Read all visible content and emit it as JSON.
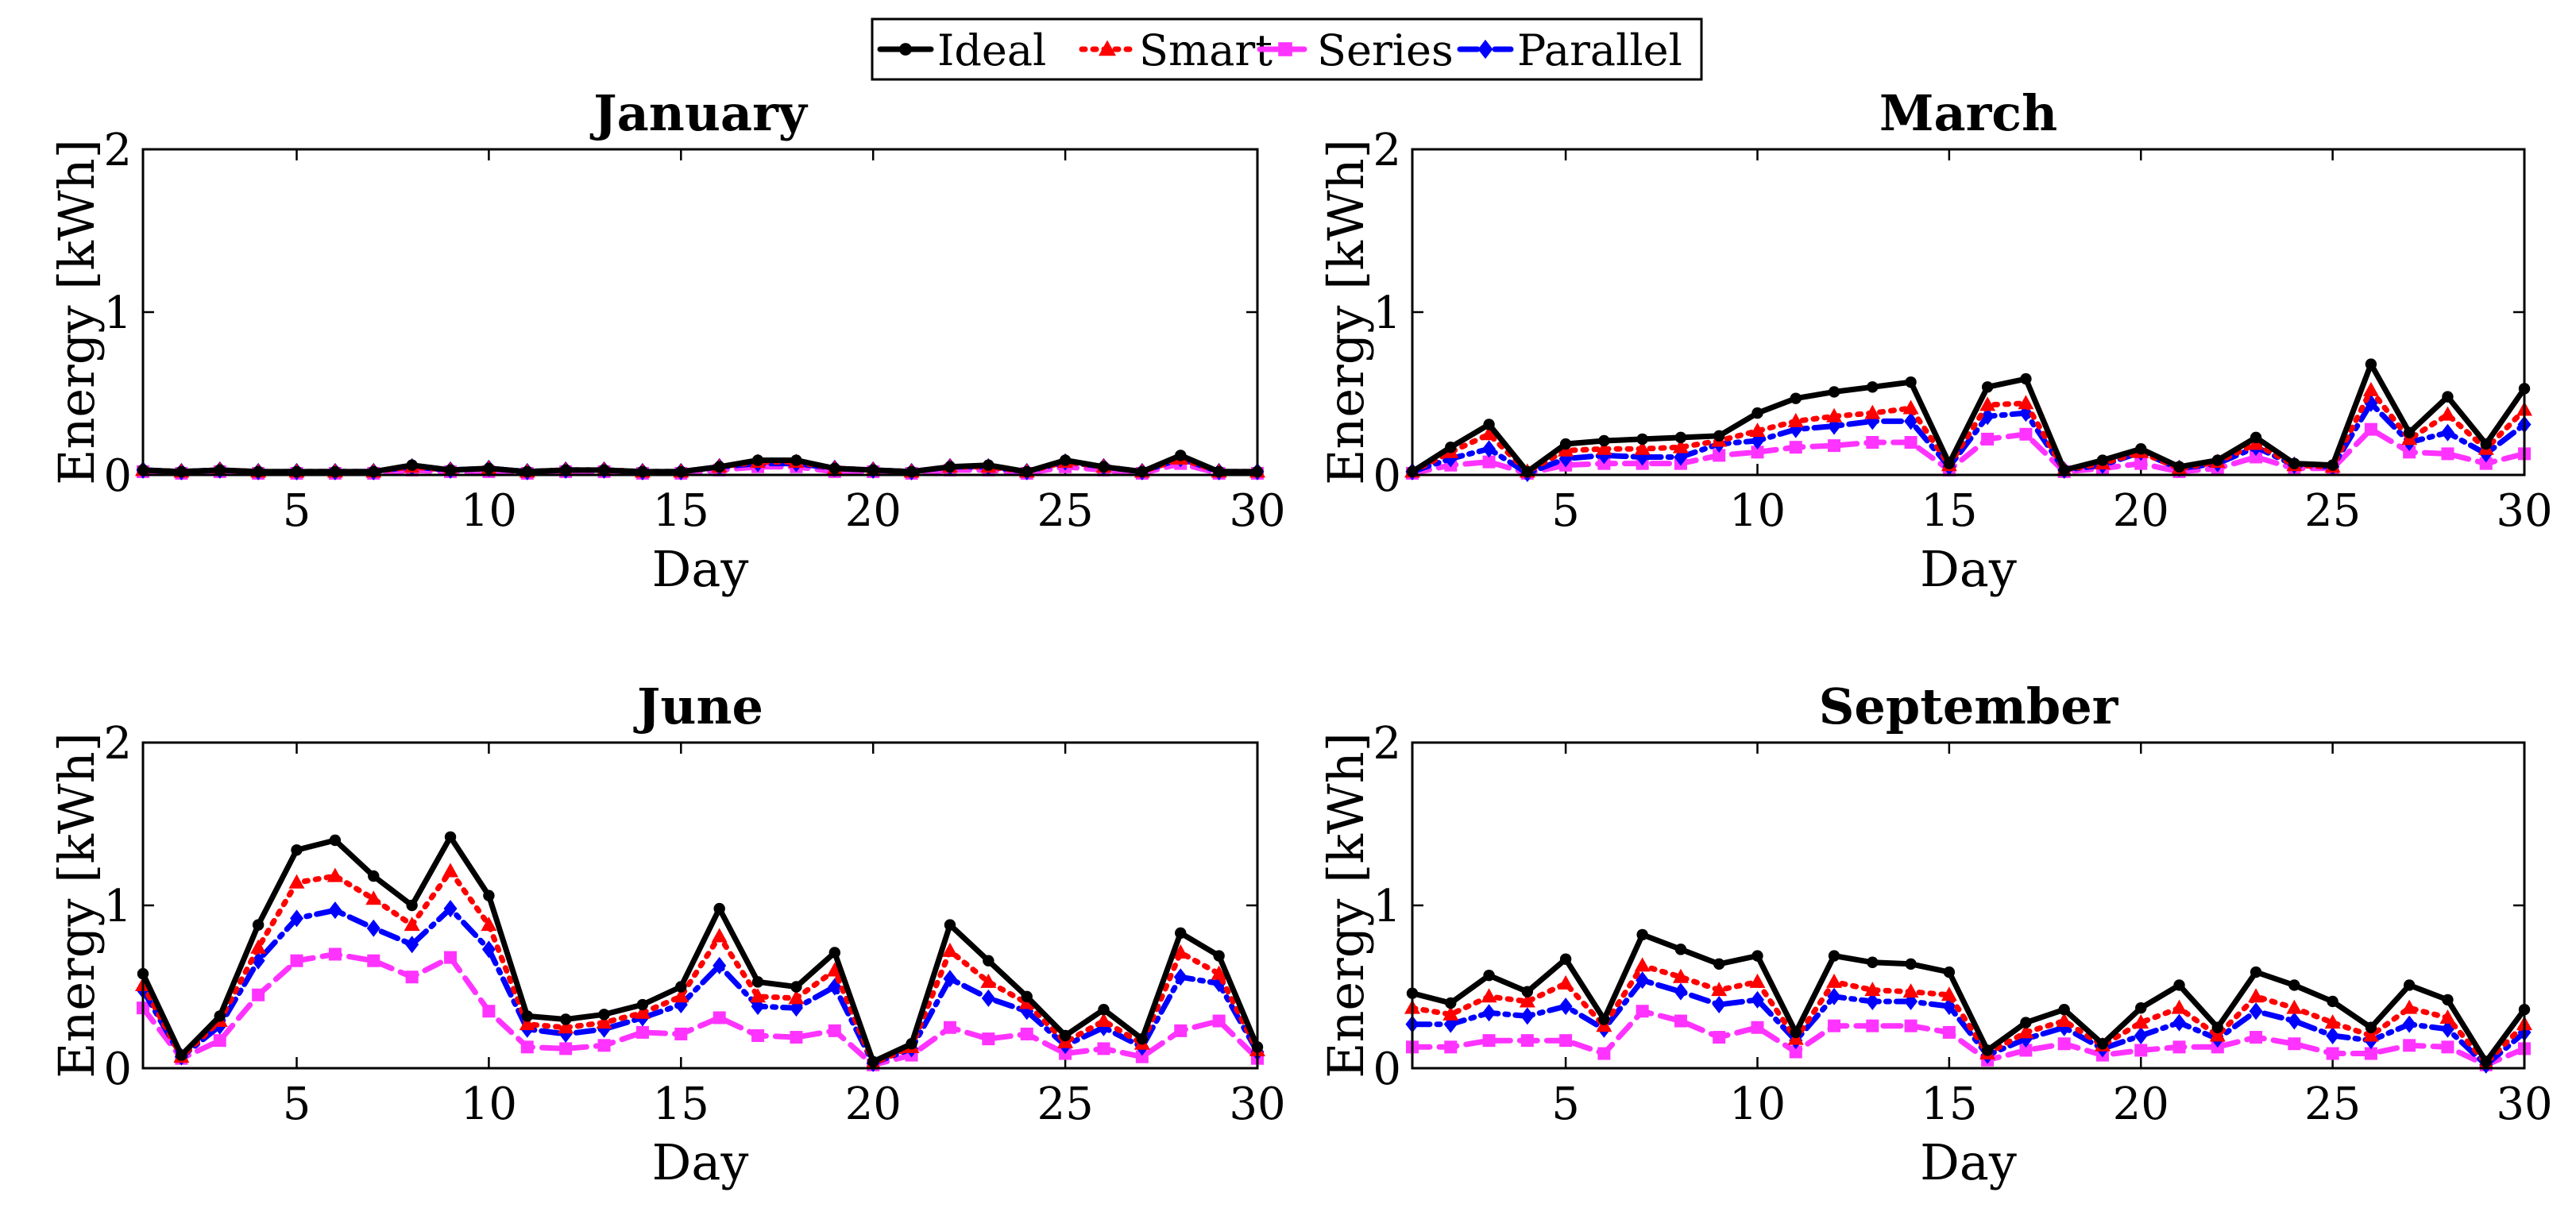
{
  "legend": [
    {
      "name": "Ideal",
      "color": "#000000",
      "marker": "circle",
      "dash": "solid"
    },
    {
      "name": "Smart",
      "color": "#ff0000",
      "marker": "triangle",
      "dash": "dotted"
    },
    {
      "name": "Series",
      "color": "#ff33ff",
      "marker": "square",
      "dash": "dashed"
    },
    {
      "name": "Parallel",
      "color": "#0000ff",
      "marker": "diamond",
      "dash": "dashdot"
    }
  ],
  "chart_data": [
    {
      "type": "line",
      "title": "January",
      "xlabel": "Day",
      "ylabel": "Energy [kWh]",
      "xlim": [
        1,
        30
      ],
      "ylim": [
        0,
        2
      ],
      "xticks": [
        5,
        10,
        15,
        20,
        25,
        30
      ],
      "yticks": [
        0,
        1,
        2
      ],
      "x": [
        1,
        2,
        3,
        4,
        5,
        6,
        7,
        8,
        9,
        10,
        11,
        12,
        13,
        14,
        15,
        16,
        17,
        18,
        19,
        20,
        21,
        22,
        23,
        24,
        25,
        26,
        27,
        28,
        29,
        30
      ],
      "series": [
        {
          "name": "Ideal",
          "values": [
            0.03,
            0.02,
            0.03,
            0.02,
            0.02,
            0.02,
            0.02,
            0.06,
            0.03,
            0.04,
            0.02,
            0.03,
            0.03,
            0.02,
            0.02,
            0.05,
            0.09,
            0.09,
            0.04,
            0.03,
            0.02,
            0.05,
            0.06,
            0.02,
            0.09,
            0.05,
            0.02,
            0.12,
            0.02,
            0.02
          ]
        },
        {
          "name": "Smart",
          "values": [
            0.03,
            0.02,
            0.03,
            0.02,
            0.02,
            0.02,
            0.02,
            0.05,
            0.03,
            0.04,
            0.02,
            0.03,
            0.03,
            0.02,
            0.02,
            0.05,
            0.08,
            0.08,
            0.04,
            0.03,
            0.02,
            0.05,
            0.05,
            0.02,
            0.08,
            0.05,
            0.02,
            0.1,
            0.02,
            0.02
          ]
        },
        {
          "name": "Series",
          "values": [
            0.02,
            0.01,
            0.02,
            0.01,
            0.01,
            0.01,
            0.01,
            0.03,
            0.02,
            0.02,
            0.01,
            0.02,
            0.02,
            0.01,
            0.01,
            0.03,
            0.05,
            0.05,
            0.02,
            0.02,
            0.01,
            0.03,
            0.03,
            0.01,
            0.05,
            0.03,
            0.01,
            0.07,
            0.01,
            0.01
          ]
        },
        {
          "name": "Parallel",
          "values": [
            0.03,
            0.02,
            0.03,
            0.02,
            0.02,
            0.02,
            0.02,
            0.05,
            0.03,
            0.04,
            0.02,
            0.03,
            0.03,
            0.02,
            0.02,
            0.05,
            0.07,
            0.07,
            0.04,
            0.03,
            0.02,
            0.05,
            0.05,
            0.02,
            0.08,
            0.05,
            0.02,
            0.1,
            0.02,
            0.02
          ]
        }
      ]
    },
    {
      "type": "line",
      "title": "March",
      "xlabel": "Day",
      "ylabel": "Energy [kWh]",
      "xlim": [
        1,
        30
      ],
      "ylim": [
        0,
        2
      ],
      "xticks": [
        5,
        10,
        15,
        20,
        25,
        30
      ],
      "yticks": [
        0,
        1,
        2
      ],
      "x": [
        1,
        2,
        3,
        4,
        5,
        6,
        7,
        8,
        9,
        10,
        11,
        12,
        13,
        14,
        15,
        16,
        17,
        18,
        19,
        20,
        21,
        22,
        23,
        24,
        25,
        26,
        27,
        28,
        29,
        30
      ],
      "series": [
        {
          "name": "Ideal",
          "values": [
            0.02,
            0.17,
            0.31,
            0.02,
            0.19,
            0.21,
            0.22,
            0.23,
            0.24,
            0.38,
            0.47,
            0.51,
            0.54,
            0.57,
            0.07,
            0.54,
            0.59,
            0.03,
            0.09,
            0.16,
            0.05,
            0.09,
            0.23,
            0.07,
            0.06,
            0.68,
            0.26,
            0.48,
            0.19,
            0.53
          ]
        },
        {
          "name": "Smart",
          "values": [
            0.02,
            0.14,
            0.25,
            0.02,
            0.15,
            0.16,
            0.16,
            0.17,
            0.21,
            0.27,
            0.33,
            0.36,
            0.38,
            0.41,
            0.06,
            0.43,
            0.44,
            0.03,
            0.07,
            0.14,
            0.04,
            0.08,
            0.19,
            0.06,
            0.05,
            0.52,
            0.22,
            0.37,
            0.16,
            0.4
          ]
        },
        {
          "name": "Series",
          "values": [
            0.01,
            0.06,
            0.08,
            0.01,
            0.06,
            0.07,
            0.07,
            0.07,
            0.12,
            0.14,
            0.17,
            0.18,
            0.2,
            0.2,
            0.03,
            0.22,
            0.25,
            0.02,
            0.04,
            0.07,
            0.02,
            0.04,
            0.11,
            0.04,
            0.04,
            0.28,
            0.14,
            0.13,
            0.07,
            0.13
          ]
        },
        {
          "name": "Parallel",
          "values": [
            0.02,
            0.1,
            0.16,
            0.01,
            0.1,
            0.12,
            0.11,
            0.11,
            0.19,
            0.21,
            0.28,
            0.3,
            0.33,
            0.33,
            0.05,
            0.36,
            0.38,
            0.03,
            0.06,
            0.14,
            0.04,
            0.07,
            0.17,
            0.06,
            0.05,
            0.44,
            0.2,
            0.26,
            0.13,
            0.31
          ]
        }
      ]
    },
    {
      "type": "line",
      "title": "June",
      "xlabel": "Day",
      "ylabel": "Energy [kWh]",
      "xlim": [
        1,
        30
      ],
      "ylim": [
        0,
        2
      ],
      "xticks": [
        5,
        10,
        15,
        20,
        25,
        30
      ],
      "yticks": [
        0,
        1,
        2
      ],
      "x": [
        1,
        2,
        3,
        4,
        5,
        6,
        7,
        8,
        9,
        10,
        11,
        12,
        13,
        14,
        15,
        16,
        17,
        18,
        19,
        20,
        21,
        22,
        23,
        24,
        25,
        26,
        27,
        28,
        29,
        30
      ],
      "series": [
        {
          "name": "Ideal",
          "values": [
            0.58,
            0.08,
            0.32,
            0.88,
            1.34,
            1.4,
            1.18,
            1.0,
            1.42,
            1.06,
            0.32,
            0.3,
            0.33,
            0.39,
            0.5,
            0.98,
            0.53,
            0.5,
            0.71,
            0.04,
            0.15,
            0.88,
            0.66,
            0.44,
            0.2,
            0.36,
            0.18,
            0.83,
            0.69,
            0.13
          ]
        },
        {
          "name": "Smart",
          "values": [
            0.51,
            0.07,
            0.29,
            0.74,
            1.14,
            1.18,
            1.04,
            0.88,
            1.21,
            0.88,
            0.27,
            0.25,
            0.28,
            0.34,
            0.44,
            0.81,
            0.44,
            0.43,
            0.6,
            0.03,
            0.13,
            0.72,
            0.53,
            0.4,
            0.16,
            0.29,
            0.15,
            0.71,
            0.58,
            0.11
          ]
        },
        {
          "name": "Series",
          "values": [
            0.37,
            0.06,
            0.17,
            0.45,
            0.66,
            0.7,
            0.66,
            0.56,
            0.68,
            0.35,
            0.13,
            0.12,
            0.14,
            0.22,
            0.21,
            0.31,
            0.2,
            0.19,
            0.23,
            0.02,
            0.08,
            0.25,
            0.18,
            0.21,
            0.09,
            0.12,
            0.07,
            0.23,
            0.29,
            0.06
          ]
        },
        {
          "name": "Parallel",
          "values": [
            0.48,
            0.07,
            0.26,
            0.66,
            0.92,
            0.97,
            0.86,
            0.76,
            0.98,
            0.73,
            0.24,
            0.21,
            0.24,
            0.31,
            0.39,
            0.63,
            0.38,
            0.37,
            0.5,
            0.03,
            0.12,
            0.55,
            0.43,
            0.35,
            0.14,
            0.25,
            0.13,
            0.56,
            0.52,
            0.1
          ]
        }
      ]
    },
    {
      "type": "line",
      "title": "September",
      "xlabel": "Day",
      "ylabel": "Energy [kWh]",
      "xlim": [
        1,
        30
      ],
      "ylim": [
        0,
        2
      ],
      "xticks": [
        5,
        10,
        15,
        20,
        25,
        30
      ],
      "yticks": [
        0,
        1,
        2
      ],
      "x": [
        1,
        2,
        3,
        4,
        5,
        6,
        7,
        8,
        9,
        10,
        11,
        12,
        13,
        14,
        15,
        16,
        17,
        18,
        19,
        20,
        21,
        22,
        23,
        24,
        25,
        26,
        27,
        28,
        29,
        30
      ],
      "series": [
        {
          "name": "Ideal",
          "values": [
            0.46,
            0.4,
            0.57,
            0.47,
            0.67,
            0.3,
            0.82,
            0.73,
            0.64,
            0.69,
            0.22,
            0.69,
            0.65,
            0.64,
            0.59,
            0.11,
            0.28,
            0.36,
            0.15,
            0.37,
            0.51,
            0.25,
            0.59,
            0.51,
            0.41,
            0.25,
            0.51,
            0.42,
            0.04,
            0.36
          ]
        },
        {
          "name": "Smart",
          "values": [
            0.37,
            0.33,
            0.44,
            0.41,
            0.52,
            0.26,
            0.63,
            0.56,
            0.48,
            0.53,
            0.18,
            0.53,
            0.48,
            0.47,
            0.45,
            0.09,
            0.22,
            0.29,
            0.14,
            0.28,
            0.37,
            0.2,
            0.44,
            0.37,
            0.28,
            0.2,
            0.37,
            0.31,
            0.03,
            0.27
          ]
        },
        {
          "name": "Series",
          "values": [
            0.13,
            0.13,
            0.17,
            0.17,
            0.17,
            0.09,
            0.35,
            0.29,
            0.19,
            0.25,
            0.1,
            0.26,
            0.26,
            0.26,
            0.22,
            0.05,
            0.11,
            0.15,
            0.08,
            0.11,
            0.13,
            0.13,
            0.19,
            0.15,
            0.09,
            0.09,
            0.14,
            0.13,
            0.02,
            0.12
          ]
        },
        {
          "name": "Parallel",
          "values": [
            0.27,
            0.27,
            0.34,
            0.32,
            0.38,
            0.24,
            0.54,
            0.47,
            0.39,
            0.42,
            0.17,
            0.44,
            0.41,
            0.41,
            0.38,
            0.08,
            0.18,
            0.25,
            0.12,
            0.2,
            0.28,
            0.18,
            0.35,
            0.29,
            0.2,
            0.17,
            0.27,
            0.24,
            0.02,
            0.22
          ]
        }
      ]
    }
  ]
}
